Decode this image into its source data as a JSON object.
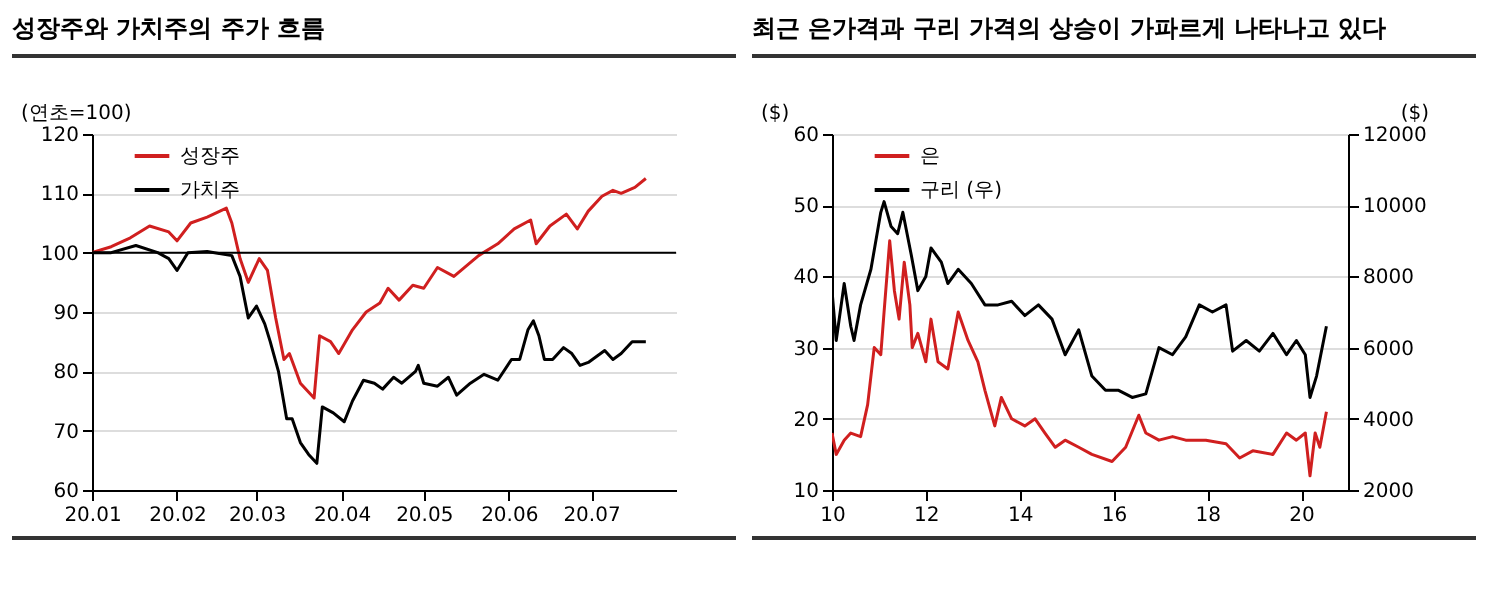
{
  "chart_data": [
    {
      "type": "line",
      "title": "성장주와 가치주의 주가 흐름",
      "ylabel": "(연초=100)",
      "xlim": [
        "--01-01",
        "--08-01"
      ],
      "xticks": [
        {
          "value": "--01-01",
          "label": "20.01"
        },
        {
          "value": "--02-01",
          "label": "20.02"
        },
        {
          "value": "--03-01",
          "label": "20.03"
        },
        {
          "value": "--04-01",
          "label": "20.04"
        },
        {
          "value": "--05-01",
          "label": "20.05"
        },
        {
          "value": "--06-01",
          "label": "20.06"
        },
        {
          "value": "--07-01",
          "label": "20.07"
        }
      ],
      "ylim": [
        60,
        120
      ],
      "yticks": [
        60,
        70,
        80,
        90,
        100,
        110,
        120
      ],
      "grid": "y",
      "legend": "top left",
      "ref_lines": [
        {
          "axis": "y",
          "value": 100,
          "color": "#000000"
        }
      ],
      "series": [
        {
          "name": "성장주",
          "color": "#d01f1f",
          "x": [
            "--01-01",
            "--01-08",
            "--01-15",
            "--01-22",
            "--01-29",
            "--02-01",
            "--02-06",
            "--02-12",
            "--02-19",
            "--02-21",
            "--02-24",
            "--02-27",
            "--03-02",
            "--03-05",
            "--03-08",
            "--03-11",
            "--03-13",
            "--03-17",
            "--03-22",
            "--03-24",
            "--03-28",
            "--03-31",
            "--04-05",
            "--04-10",
            "--04-15",
            "--04-18",
            "--04-22",
            "--04-27",
            "--05-01",
            "--05-06",
            "--05-12",
            "--05-21",
            "--05-28",
            "--06-03",
            "--06-09",
            "--06-11",
            "--06-16",
            "--06-22",
            "--06-26",
            "--06-30",
            "--07-05",
            "--07-09",
            "--07-12",
            "--07-17",
            "--07-21"
          ],
          "values": [
            100,
            101,
            102.5,
            104.5,
            103.5,
            102,
            105,
            106,
            107.5,
            105,
            99,
            95,
            99,
            97,
            89,
            82,
            83,
            78,
            75.5,
            86,
            85,
            83,
            87,
            90,
            91.5,
            94,
            92,
            94.5,
            94,
            97.5,
            96,
            99.5,
            101.5,
            104,
            105.5,
            101.5,
            104.5,
            106.5,
            104,
            107,
            109.5,
            110.5,
            110,
            111,
            112.5
          ]
        },
        {
          "name": "가치주",
          "color": "#000000",
          "x": [
            "--01-01",
            "--01-08",
            "--01-17",
            "--01-25",
            "--01-29",
            "--02-01",
            "--02-05",
            "--02-12",
            "--02-21",
            "--02-24",
            "--02-27",
            "--03-01",
            "--03-04",
            "--03-06",
            "--03-09",
            "--03-12",
            "--03-14",
            "--03-17",
            "--03-20",
            "--03-23",
            "--03-25",
            "--03-29",
            "--04-02",
            "--04-05",
            "--04-09",
            "--04-13",
            "--04-16",
            "--04-20",
            "--04-23",
            "--04-28",
            "--04-29",
            "--05-01",
            "--05-06",
            "--05-10",
            "--05-13",
            "--05-18",
            "--05-23",
            "--05-28",
            "--06-02",
            "--06-05",
            "--06-08",
            "--06-10",
            "--06-12",
            "--06-14",
            "--06-17",
            "--06-21",
            "--06-24",
            "--06-27",
            "--06-30",
            "--07-06",
            "--07-09",
            "--07-12",
            "--07-16",
            "--07-21"
          ],
          "values": [
            100,
            100,
            101.2,
            100,
            99,
            97,
            100,
            100.2,
            99.5,
            96,
            89,
            91,
            88,
            85,
            80,
            72,
            72,
            68,
            66,
            64.5,
            74,
            73,
            71.5,
            75,
            78.5,
            78,
            77,
            79,
            78,
            80,
            81,
            78,
            77.5,
            79,
            76,
            78,
            79.5,
            78.5,
            82,
            82,
            87,
            88.5,
            86,
            82,
            82,
            84,
            83,
            81,
            81.5,
            83.5,
            82,
            83,
            85,
            85
          ]
        }
      ]
    },
    {
      "type": "line",
      "title": "최근 은가격과 구리 가격의 상승이 가파르게 나타나고 있다",
      "ylabel": "($)",
      "y2label": "($)",
      "xlim": [
        10,
        21
      ],
      "xticks": [
        10,
        12,
        14,
        16,
        18,
        20
      ],
      "ylim": [
        10,
        60
      ],
      "yticks": [
        10,
        20,
        30,
        40,
        50,
        60
      ],
      "y2lim": [
        2000,
        12000
      ],
      "y2ticks": [
        2000,
        4000,
        6000,
        8000,
        10000,
        12000
      ],
      "grid": "y",
      "legend": "top left",
      "series": [
        {
          "name": "은",
          "color": "#d01f1f",
          "x": [
            10,
            10.09,
            10.26,
            10.4,
            10.61,
            10.76,
            10.9,
            11.04,
            11.11,
            11.23,
            11.33,
            11.43,
            11.54,
            11.66,
            11.71,
            11.83,
            12,
            12.11,
            12.26,
            12.47,
            12.69,
            12.9,
            13.11,
            13.26,
            13.47,
            13.61,
            13.83,
            14.11,
            14.33,
            14.54,
            14.76,
            14.97,
            15.26,
            15.54,
            15.97,
            16.26,
            16.54,
            16.69,
            16.97,
            17.26,
            17.54,
            17.97,
            18.4,
            18.69,
            18.97,
            19.4,
            19.69,
            19.9,
            20.09,
            20.19,
            20.3,
            20.4,
            20.54
          ],
          "values": [
            18,
            15,
            17,
            18,
            17.5,
            22,
            30,
            29,
            35,
            45,
            38,
            34,
            42,
            36,
            30,
            32,
            28,
            34,
            28,
            27,
            35,
            31,
            28,
            24,
            19,
            23,
            20,
            19,
            20,
            18,
            16,
            17,
            16,
            15,
            14,
            16,
            20.5,
            18,
            17,
            17.5,
            17,
            17,
            16.5,
            14.5,
            15.5,
            15,
            18,
            17,
            18,
            12,
            18,
            16,
            21
          ]
        },
        {
          "name": "구리 (우)",
          "color": "#000000",
          "axis": "y2",
          "x": [
            10,
            10.09,
            10.26,
            10.4,
            10.47,
            10.61,
            10.83,
            11.04,
            11.11,
            11.26,
            11.4,
            11.51,
            11.69,
            11.83,
            12,
            12.11,
            12.33,
            12.47,
            12.69,
            12.97,
            13.26,
            13.54,
            13.83,
            14.11,
            14.4,
            14.69,
            14.97,
            15.26,
            15.54,
            15.83,
            16.11,
            16.4,
            16.69,
            16.97,
            17.26,
            17.54,
            17.83,
            18.11,
            18.4,
            18.54,
            18.83,
            19.11,
            19.4,
            19.69,
            19.9,
            20.09,
            20.19,
            20.33,
            20.54
          ],
          "values": [
            7600,
            6200,
            7800,
            6600,
            6200,
            7200,
            8200,
            9800,
            10100,
            9400,
            9200,
            9800,
            8600,
            7600,
            8000,
            8800,
            8400,
            7800,
            8200,
            7800,
            7200,
            7200,
            7300,
            6900,
            7200,
            6800,
            5800,
            6500,
            5200,
            4800,
            4800,
            4600,
            4700,
            6000,
            5800,
            6300,
            7200,
            7000,
            7200,
            5900,
            6200,
            5900,
            6400,
            5800,
            6200,
            5800,
            4600,
            5200,
            6600
          ]
        }
      ]
    }
  ]
}
